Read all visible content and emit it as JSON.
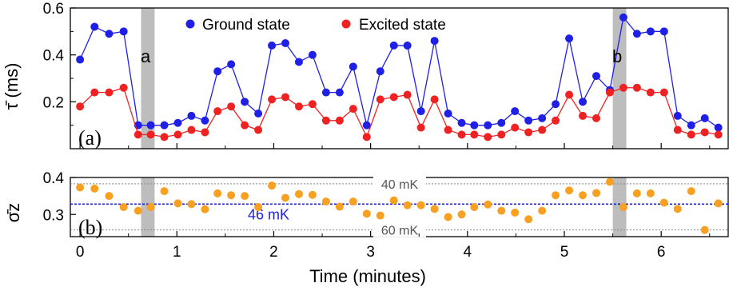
{
  "colors": {
    "ground": "#1f1fe6",
    "excited": "#ee2222",
    "sigma": "#f7a021",
    "mean_line": "#1f1fe6",
    "ref_line": "#888888",
    "highlight": "#bdbdbd"
  },
  "panel_labels": {
    "a": "(a)",
    "b": "(b)"
  },
  "markers": {
    "a": "a",
    "b": "b"
  },
  "chart_data": [
    {
      "type": "line",
      "panel": "(a)",
      "ylabel": "τ̄ (ms)",
      "ylim": [
        0.0,
        0.6
      ],
      "yticks": [
        "0.2",
        "0.4",
        "0.6"
      ],
      "xlim": [
        -0.1,
        6.7
      ],
      "grid": false,
      "legend_position": "top",
      "highlight_bands": [
        {
          "x_from": 0.63,
          "x_to": 0.77,
          "label": "a"
        },
        {
          "x_from": 5.5,
          "x_to": 5.64,
          "label": "b"
        }
      ],
      "series": [
        {
          "name": "Ground state",
          "x": [
            0.0,
            0.15,
            0.3,
            0.45,
            0.6,
            0.73,
            0.87,
            1.01,
            1.15,
            1.29,
            1.42,
            1.56,
            1.7,
            1.84,
            1.98,
            2.12,
            2.26,
            2.4,
            2.54,
            2.68,
            2.82,
            2.96,
            3.1,
            3.24,
            3.38,
            3.52,
            3.66,
            3.8,
            3.94,
            4.07,
            4.21,
            4.35,
            4.49,
            4.63,
            4.77,
            4.91,
            5.05,
            5.19,
            5.33,
            5.47,
            5.61,
            5.75,
            5.89,
            6.03,
            6.17,
            6.31,
            6.45,
            6.59
          ],
          "values": [
            0.38,
            0.52,
            0.49,
            0.5,
            0.1,
            0.1,
            0.1,
            0.11,
            0.14,
            0.12,
            0.33,
            0.36,
            0.2,
            0.15,
            0.44,
            0.45,
            0.37,
            0.4,
            0.24,
            0.24,
            0.35,
            0.1,
            0.33,
            0.44,
            0.44,
            0.16,
            0.46,
            0.15,
            0.11,
            0.1,
            0.1,
            0.11,
            0.16,
            0.12,
            0.13,
            0.19,
            0.47,
            0.2,
            0.31,
            0.25,
            0.56,
            0.49,
            0.5,
            0.5,
            0.14,
            0.1,
            0.13,
            0.09
          ]
        },
        {
          "name": "Excited state",
          "x": [
            0.0,
            0.15,
            0.3,
            0.45,
            0.6,
            0.73,
            0.87,
            1.01,
            1.15,
            1.29,
            1.42,
            1.56,
            1.7,
            1.84,
            1.98,
            2.12,
            2.26,
            2.4,
            2.54,
            2.68,
            2.82,
            2.96,
            3.1,
            3.24,
            3.38,
            3.52,
            3.66,
            3.8,
            3.94,
            4.07,
            4.21,
            4.35,
            4.49,
            4.63,
            4.77,
            4.91,
            5.05,
            5.19,
            5.33,
            5.47,
            5.61,
            5.75,
            5.89,
            6.03,
            6.17,
            6.31,
            6.45,
            6.59
          ],
          "values": [
            0.18,
            0.24,
            0.24,
            0.26,
            0.06,
            0.06,
            0.05,
            0.06,
            0.08,
            0.07,
            0.16,
            0.18,
            0.1,
            0.08,
            0.21,
            0.22,
            0.18,
            0.19,
            0.12,
            0.12,
            0.17,
            0.05,
            0.21,
            0.22,
            0.23,
            0.09,
            0.21,
            0.08,
            0.06,
            0.06,
            0.05,
            0.06,
            0.09,
            0.07,
            0.08,
            0.12,
            0.23,
            0.14,
            0.13,
            0.24,
            0.26,
            0.26,
            0.24,
            0.24,
            0.08,
            0.06,
            0.07,
            0.06
          ]
        }
      ]
    },
    {
      "type": "scatter",
      "panel": "(b)",
      "ylabel": "σ̄z",
      "xlabel": "Time (minutes)",
      "ylim": [
        0.24,
        0.4
      ],
      "yticks": [
        "0.3",
        "0.4"
      ],
      "xlim": [
        -0.1,
        6.7
      ],
      "xticks": [
        "0",
        "1",
        "2",
        "3",
        "4",
        "5",
        "6"
      ],
      "grid": false,
      "highlight_bands": [
        {
          "x_from": 0.63,
          "x_to": 0.77
        },
        {
          "x_from": 5.5,
          "x_to": 5.64
        }
      ],
      "reference_lines": [
        {
          "y": 0.383,
          "label": "40 mK",
          "style": "dotted-gray"
        },
        {
          "y": 0.328,
          "label": "46 mK",
          "style": "dotted-blue"
        },
        {
          "y": 0.258,
          "label": "60 mK",
          "style": "dotted-gray"
        }
      ],
      "series": [
        {
          "x": [
            0.0,
            0.15,
            0.3,
            0.45,
            0.6,
            0.73,
            0.87,
            1.01,
            1.15,
            1.29,
            1.42,
            1.56,
            1.7,
            1.84,
            1.98,
            2.12,
            2.26,
            2.4,
            2.54,
            2.68,
            2.82,
            2.96,
            3.1,
            3.24,
            3.38,
            3.52,
            3.66,
            3.8,
            3.94,
            4.07,
            4.21,
            4.35,
            4.49,
            4.63,
            4.77,
            4.91,
            5.05,
            5.19,
            5.33,
            5.47,
            5.61,
            5.75,
            5.89,
            6.03,
            6.17,
            6.31,
            6.45,
            6.59
          ],
          "values": [
            0.373,
            0.37,
            0.35,
            0.32,
            0.31,
            0.32,
            0.363,
            0.33,
            0.328,
            0.314,
            0.357,
            0.352,
            0.35,
            0.32,
            0.378,
            0.345,
            0.355,
            0.353,
            0.335,
            0.321,
            0.335,
            0.302,
            0.297,
            0.338,
            0.325,
            0.325,
            0.315,
            0.293,
            0.3,
            0.32,
            0.327,
            0.31,
            0.305,
            0.287,
            0.31,
            0.352,
            0.365,
            0.352,
            0.358,
            0.388,
            0.32,
            0.357,
            0.357,
            0.332,
            0.315,
            0.363,
            0.258,
            0.33
          ]
        }
      ]
    }
  ]
}
